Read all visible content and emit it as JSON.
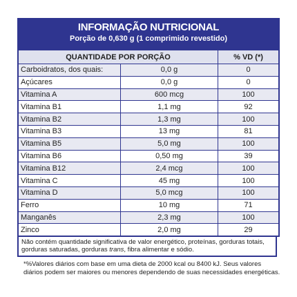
{
  "header": {
    "title": "INFORMAÇÃO NUTRICIONAL",
    "subtitle": "Porção de 0,630 g (1 comprimido revestido)"
  },
  "table": {
    "columns": [
      "QUANTIDADE POR PORÇÃO",
      "% VD (*)"
    ],
    "rows": [
      [
        "Carboidratos, dos quais:",
        "0,0 g",
        "0"
      ],
      [
        "Açúcares",
        "0,0 g",
        "0"
      ],
      [
        "Vitamina A",
        "600 mcg",
        "100"
      ],
      [
        "Vitamina B1",
        "1,1 mg",
        "92"
      ],
      [
        "Vitamina B2",
        "1,3 mg",
        "100"
      ],
      [
        "Vitamina B3",
        "13 mg",
        "81"
      ],
      [
        "Vitamina B5",
        "5,0 mg",
        "100"
      ],
      [
        "Vitamina B6",
        "0,50 mg",
        "39"
      ],
      [
        "Vitamina B12",
        "2,4 mcg",
        "100"
      ],
      [
        "Vitamina C",
        "45 mg",
        "100"
      ],
      [
        "Vitamina D",
        "5,0 mcg",
        "100"
      ],
      [
        "Ferro",
        "10 mg",
        "71"
      ],
      [
        "Manganês",
        "2,3 mg",
        "100"
      ],
      [
        "Zinco",
        "2,0 mg",
        "29"
      ]
    ]
  },
  "note": {
    "parts": [
      "Não contém quantidade significativa de valor energético, proteínas, gorduras totais, gorduras saturadas, gorduras ",
      "trans",
      ", fibra alimentar e sódio."
    ]
  },
  "footnote": "*%Valores diários com base em uma dieta de 2000 kcal ou 8400 kJ. Seus valores diários podem ser maiores ou menores dependendo de suas necessidades energéticas."
}
